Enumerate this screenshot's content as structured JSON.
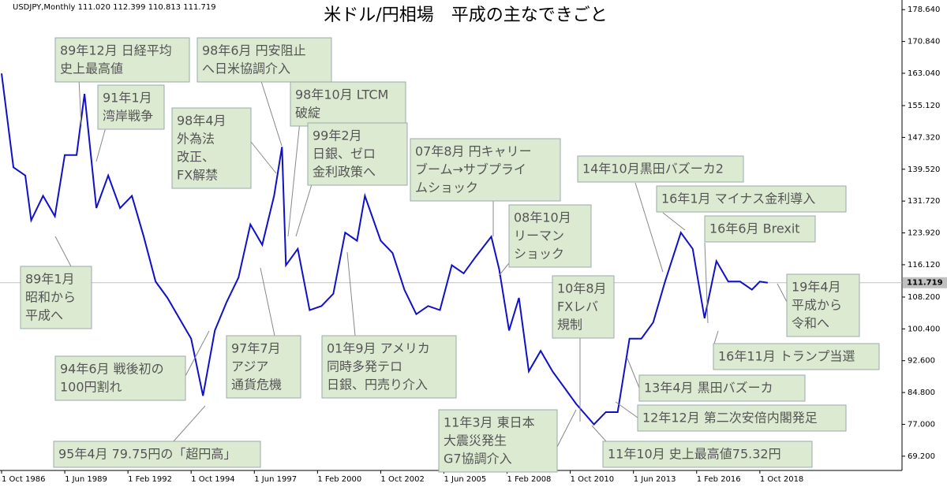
{
  "chart_data": {
    "type": "line",
    "title": "米ドル/円相場　平成の主なできごと",
    "header": "USDJPY,Monthly  111.020 112.399 110.813 111.719",
    "color": "#1010c8",
    "x": [
      "1986-10",
      "1987-04",
      "1987-10",
      "1988-01",
      "1988-07",
      "1989-01",
      "1989-06",
      "1989-12",
      "1990-04",
      "1990-10",
      "1991-04",
      "1991-10",
      "1992-04",
      "1992-10",
      "1993-04",
      "1993-10",
      "1994-04",
      "1994-10",
      "1995-04",
      "1995-10",
      "1996-04",
      "1996-10",
      "1997-04",
      "1997-10",
      "1998-04",
      "1998-08",
      "1998-10",
      "1999-04",
      "1999-10",
      "2000-04",
      "2000-10",
      "2001-04",
      "2001-10",
      "2002-02",
      "2002-10",
      "2003-04",
      "2003-10",
      "2004-04",
      "2004-10",
      "2005-04",
      "2005-10",
      "2006-04",
      "2006-10",
      "2007-06",
      "2007-10",
      "2008-03",
      "2008-08",
      "2009-01",
      "2009-07",
      "2010-01",
      "2010-07",
      "2011-01",
      "2011-10",
      "2012-04",
      "2012-10",
      "2013-04",
      "2013-10",
      "2014-04",
      "2014-10",
      "2015-06",
      "2015-12",
      "2016-06",
      "2016-12",
      "2017-06",
      "2017-12",
      "2018-06",
      "2018-10",
      "2019-02"
    ],
    "values": [
      163,
      140,
      138,
      127,
      133,
      128,
      143,
      143,
      158,
      130,
      138,
      130,
      133,
      123,
      112,
      108,
      103,
      98,
      84,
      100,
      107,
      113,
      126,
      121,
      133,
      145,
      116,
      120,
      105,
      106,
      109,
      124,
      122,
      133,
      122,
      119,
      110,
      104,
      106,
      105,
      116,
      114,
      118,
      123,
      115,
      100,
      108,
      90,
      95,
      90,
      86,
      82,
      77,
      80,
      80,
      98,
      98,
      102,
      112,
      124,
      120,
      103,
      117,
      112,
      112,
      110,
      112,
      111.719
    ],
    "xlim": [
      "1986-10",
      "2024-10"
    ],
    "xticks": [
      {
        "value": "1986-10",
        "label": "1 Oct 1986"
      },
      {
        "value": "1989-06",
        "label": "1 Jun 1989"
      },
      {
        "value": "1992-02",
        "label": "1 Feb 1992"
      },
      {
        "value": "1994-10",
        "label": "1 Oct 1994"
      },
      {
        "value": "1997-06",
        "label": "1 Jun 1997"
      },
      {
        "value": "2000-02",
        "label": "1 Feb 2000"
      },
      {
        "value": "2002-10",
        "label": "1 Oct 2002"
      },
      {
        "value": "2005-06",
        "label": "1 Jun 2005"
      },
      {
        "value": "2008-02",
        "label": "1 Feb 2008"
      },
      {
        "value": "2010-10",
        "label": "1 Oct 2010"
      },
      {
        "value": "2013-06",
        "label": "1 Jun 2013"
      },
      {
        "value": "2016-02",
        "label": "1 Feb 2016"
      },
      {
        "value": "2018-10",
        "label": "1 Oct 2018"
      }
    ],
    "ylim": [
      65.7,
      181.0
    ],
    "yticks": [
      {
        "value": 178.64,
        "label": "178.640"
      },
      {
        "value": 170.84,
        "label": "170.840"
      },
      {
        "value": 163.04,
        "label": "163.040"
      },
      {
        "value": 155.12,
        "label": "155.120"
      },
      {
        "value": 147.32,
        "label": "147.320"
      },
      {
        "value": 139.52,
        "label": "139.520"
      },
      {
        "value": 131.72,
        "label": "131.720"
      },
      {
        "value": 123.92,
        "label": "123.920"
      },
      {
        "value": 116.12,
        "label": "116.120"
      },
      {
        "value": 108.2,
        "label": "108.200"
      },
      {
        "value": 100.4,
        "label": "100.400"
      },
      {
        "value": 92.6,
        "label": "92.600"
      },
      {
        "value": 84.8,
        "label": "84.800"
      },
      {
        "value": 77.0,
        "label": "77.000"
      },
      {
        "value": 69.2,
        "label": "69.200"
      }
    ],
    "current_price": {
      "value": 111.719,
      "label": "111.719"
    },
    "annotations": [
      {
        "lines": [
          "89年12月 日経平均",
          "史上最高値"
        ]
      },
      {
        "lines": [
          "91年1月",
          "湾岸戦争"
        ]
      },
      {
        "lines": [
          "98年4月",
          "外為法",
          "改正、",
          "FX解禁"
        ]
      },
      {
        "lines": [
          "98年6月 円安阻止",
          "へ日米協調介入"
        ]
      },
      {
        "lines": [
          "98年10月 LTCM",
          "破綻"
        ]
      },
      {
        "lines": [
          "99年2月",
          "日銀、ゼロ",
          "金利政策へ"
        ]
      },
      {
        "lines": [
          "07年8月 円キャリー",
          "ブーム→サブプライ",
          "ムショック"
        ]
      },
      {
        "lines": [
          "08年10月",
          "リーマン",
          "ショック"
        ]
      },
      {
        "lines": [
          "14年10月黒田バズーカ2"
        ]
      },
      {
        "lines": [
          "16年1月 マイナス金利導入"
        ]
      },
      {
        "lines": [
          "16年6月 Brexit"
        ]
      },
      {
        "lines": [
          "89年1月",
          "昭和から",
          "平成へ"
        ]
      },
      {
        "lines": [
          "10年8月",
          "FXレバ",
          "規制"
        ]
      },
      {
        "lines": [
          "19年4月",
          "平成から",
          "令和へ"
        ]
      },
      {
        "lines": [
          "94年6月 戦後初の",
          "100円割れ"
        ]
      },
      {
        "lines": [
          "97年7月",
          "アジア",
          "通貨危機"
        ]
      },
      {
        "lines": [
          "01年9月 アメリカ",
          "同時多発テロ",
          "日銀、円売り介入"
        ]
      },
      {
        "lines": [
          "16年11月 トランプ当選"
        ]
      },
      {
        "lines": [
          "13年4月 黒田バズーカ"
        ]
      },
      {
        "lines": [
          "11年3月 東日本",
          "大震災発生",
          "G7協調介入"
        ]
      },
      {
        "lines": [
          "12年12月 第二次安倍内閣発足"
        ]
      },
      {
        "lines": [
          "11年10月 史上最高値75.32円"
        ]
      },
      {
        "lines": [
          "95年4月 79.75円の「超円高」"
        ]
      }
    ]
  }
}
